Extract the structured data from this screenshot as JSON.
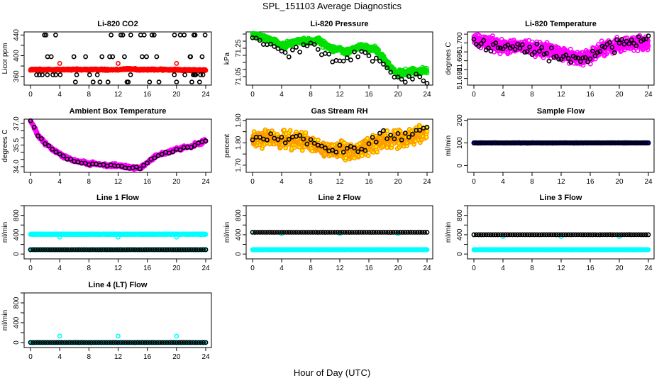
{
  "title": "SPL_151103  Average Diagnostics",
  "xlabel": "Hour of Day (UTC)",
  "chart_data": [
    {
      "type": "scatter",
      "title": "Li-820 CO2",
      "ylabel": "Licor ppm",
      "xlim": [
        0,
        24
      ],
      "ylim": [
        343,
        446
      ],
      "yticks": [
        360,
        380,
        400,
        420,
        440
      ],
      "ylabels": [
        "360",
        "",
        "400",
        "",
        "440"
      ],
      "series": [
        {
          "name": "dense",
          "color": "#ff0000",
          "trend": [
            373,
            373,
            373,
            373,
            373,
            373,
            373,
            373,
            373,
            373,
            373,
            373,
            373,
            374,
            374,
            373,
            373,
            373,
            373,
            373,
            373,
            372,
            372,
            372,
            372
          ],
          "spread": 1.5,
          "density": 30
        },
        {
          "name": "outliers",
          "color": "#ff0000",
          "points": [
            [
              4,
              385
            ],
            [
              12,
              385
            ],
            [
              20,
              385
            ]
          ]
        },
        {
          "name": "black",
          "color": "#000000",
          "levels": [
            440,
            398,
            363,
            349
          ],
          "count": 60
        }
      ]
    },
    {
      "type": "scatter",
      "title": "Li-820 Pressure",
      "ylabel": "kPa",
      "xlim": [
        0,
        24
      ],
      "ylim": [
        70.99,
        71.365
      ],
      "yticks": [
        71.05,
        71.1,
        71.15,
        71.2,
        71.25,
        71.3,
        71.35
      ],
      "ylabels": [
        "71.05",
        "",
        "",
        "",
        "71.25",
        "",
        ""
      ],
      "series": [
        {
          "name": "dense",
          "color": "#00e000",
          "trend": [
            71.35,
            71.33,
            71.32,
            71.3,
            71.27,
            71.28,
            71.3,
            71.3,
            71.3,
            71.31,
            71.27,
            71.25,
            71.24,
            71.22,
            71.25,
            71.26,
            71.25,
            71.24,
            71.18,
            71.11,
            71.07,
            71.08,
            71.09,
            71.09,
            71.09
          ],
          "spread": 0.02,
          "density": 30
        },
        {
          "name": "black",
          "color": "#000000",
          "trend": [
            71.33,
            71.3,
            71.28,
            71.24,
            71.21,
            71.22,
            71.25,
            71.26,
            71.27,
            71.26,
            71.2,
            71.18,
            71.17,
            71.16,
            71.2,
            71.22,
            71.2,
            71.17,
            71.12,
            71.07,
            71.03,
            71.02,
            71.04,
            71.05,
            71.01
          ],
          "spread": 0.03,
          "density": 2
        }
      ]
    },
    {
      "type": "scatter",
      "title": "Li-820 Temperature",
      "ylabel": "degrees C",
      "xlim": [
        0,
        24
      ],
      "ylim": [
        51.6905,
        51.7025
      ],
      "yticks": [
        51.692,
        51.694,
        51.696,
        51.698,
        51.7,
        51.702
      ],
      "ylabels": [
        "51.692",
        "",
        "51.696",
        "",
        "51.700",
        ""
      ],
      "series": [
        {
          "name": "dense",
          "color": "#ff00ff",
          "trend": [
            51.7008,
            51.7004,
            51.7,
            51.6996,
            51.6994,
            51.6993,
            51.6992,
            51.699,
            51.6988,
            51.6985,
            51.6983,
            51.698,
            51.6976,
            51.6972,
            51.6968,
            51.6964,
            51.697,
            51.6982,
            51.699,
            51.6994,
            51.6996,
            51.6998,
            51.6999,
            51.7,
            51.7001
          ],
          "spread": 0.0015,
          "density": 35
        },
        {
          "name": "black",
          "color": "#000000",
          "trend": [
            51.7,
            51.7001,
            51.6998,
            51.6994,
            51.6992,
            51.699,
            51.6988,
            51.6985,
            51.6982,
            51.698,
            51.6978,
            51.6975,
            51.6972,
            51.697,
            51.6966,
            51.6962,
            51.697,
            51.698,
            51.6988,
            51.6992,
            51.6994,
            51.6996,
            51.6998,
            51.7,
            51.7002
          ],
          "spread": 0.0015,
          "density": 3
        }
      ]
    },
    {
      "type": "scatter",
      "title": "Ambient Box Temperature",
      "ylabel": "degrees C",
      "xlim": [
        0,
        24
      ],
      "ylim": [
        33.6,
        37.3
      ],
      "yticks": [
        34.0,
        34.5,
        35.0,
        35.5,
        36.0,
        36.5,
        37.0
      ],
      "ylabels": [
        "34.0",
        "",
        "",
        "35.5",
        "",
        "",
        "37.0"
      ],
      "series": [
        {
          "name": "dense",
          "color": "#ff00ff",
          "trend": [
            37.2,
            36.2,
            35.6,
            35.2,
            34.9,
            34.6,
            34.4,
            34.3,
            34.2,
            34.2,
            34.1,
            34.1,
            34.05,
            34.0,
            33.9,
            33.9,
            34.3,
            34.7,
            34.9,
            35.0,
            35.2,
            35.3,
            35.4,
            35.6,
            35.8
          ],
          "spread": 0.12,
          "density": 25
        },
        {
          "name": "black",
          "color": "#000000",
          "trend": [
            37.2,
            36.2,
            35.6,
            35.2,
            34.9,
            34.6,
            34.4,
            34.3,
            34.2,
            34.2,
            34.1,
            34.1,
            34.05,
            34.0,
            33.9,
            33.9,
            34.3,
            34.7,
            34.9,
            35.0,
            35.2,
            35.3,
            35.4,
            35.6,
            35.8
          ],
          "spread": 0.08,
          "density": 2
        }
      ]
    },
    {
      "type": "scatter",
      "title": "Gas Stream RH",
      "ylabel": "percent",
      "xlim": [
        0,
        24
      ],
      "ylim": [
        1.668,
        1.906
      ],
      "yticks": [
        1.7,
        1.75,
        1.8,
        1.85,
        1.9
      ],
      "ylabels": [
        "1.70",
        "",
        "1.80",
        "",
        "1.90"
      ],
      "series": [
        {
          "name": "dense",
          "color": "#ff9900",
          "inner": "#ffff00",
          "trend": [
            1.81,
            1.82,
            1.82,
            1.82,
            1.81,
            1.82,
            1.81,
            1.81,
            1.79,
            1.78,
            1.77,
            1.77,
            1.77,
            1.76,
            1.76,
            1.77,
            1.79,
            1.8,
            1.81,
            1.81,
            1.82,
            1.82,
            1.83,
            1.84,
            1.85
          ],
          "spread": 0.035,
          "density": 35
        },
        {
          "name": "black",
          "color": "#000000",
          "trend": [
            1.82,
            1.83,
            1.83,
            1.82,
            1.82,
            1.83,
            1.82,
            1.82,
            1.79,
            1.78,
            1.77,
            1.77,
            1.78,
            1.76,
            1.76,
            1.77,
            1.8,
            1.82,
            1.84,
            1.83,
            1.82,
            1.83,
            1.84,
            1.86,
            1.86
          ],
          "spread": 0.025,
          "density": 2
        }
      ]
    },
    {
      "type": "scatter",
      "title": "Sample Flow",
      "ylabel": "ml/min",
      "xlim": [
        0,
        24
      ],
      "ylim": [
        -30,
        205
      ],
      "yticks": [
        0,
        100,
        200
      ],
      "ylabels": [
        "0",
        "100",
        "200"
      ],
      "series": [
        {
          "name": "dense",
          "color": "#0000ff",
          "trend": [
            100,
            100,
            100,
            100,
            100,
            100,
            100,
            100,
            100,
            100,
            100,
            100,
            100,
            100,
            100,
            100,
            100,
            100,
            100,
            100,
            100,
            100,
            100,
            100,
            100
          ],
          "spread": 1,
          "density": 30
        },
        {
          "name": "black",
          "color": "#000000",
          "trend": [
            100,
            100,
            100,
            100,
            100,
            100,
            100,
            100,
            100,
            100,
            100,
            100,
            100,
            100,
            100,
            100,
            100,
            100,
            100,
            100,
            100,
            100,
            100,
            100,
            100
          ],
          "spread": 0.5,
          "density": 3
        }
      ]
    },
    {
      "type": "scatter",
      "title": "Line 1 Flow",
      "ylabel": "ml/min",
      "xlim": [
        0,
        24
      ],
      "ylim": [
        -100,
        1000
      ],
      "yticks": [
        0,
        200,
        400,
        600,
        800,
        1000
      ],
      "ylabels": [
        "0",
        "",
        "400",
        "",
        "800",
        ""
      ],
      "series": [
        {
          "name": "cyan-high",
          "color": "#00ffff",
          "flat": 410,
          "spread": 5,
          "density": 35
        },
        {
          "name": "cyan-low",
          "color": "#00ffff",
          "flat": 90,
          "spread": 2,
          "density": 10
        },
        {
          "name": "cyan-outliers",
          "color": "#00ffff",
          "points": [
            [
              4,
              350
            ],
            [
              12,
              350
            ],
            [
              20,
              350
            ]
          ]
        },
        {
          "name": "black",
          "color": "#000000",
          "flat": 90,
          "spread": 1,
          "density": 3
        }
      ]
    },
    {
      "type": "scatter",
      "title": "Line 2 Flow",
      "ylabel": "ml/min",
      "xlim": [
        0,
        24
      ],
      "ylim": [
        -100,
        1000
      ],
      "yticks": [
        0,
        200,
        400,
        600,
        800,
        1000
      ],
      "ylabels": [
        "0",
        "",
        "400",
        "",
        "800",
        ""
      ],
      "series": [
        {
          "name": "cyan-low",
          "color": "#00ffff",
          "flat": 90,
          "spread": 4,
          "density": 30
        },
        {
          "name": "cyan-outliers",
          "color": "#00ffff",
          "points": [
            [
              0,
              450
            ],
            [
              4,
              420
            ],
            [
              12,
              420
            ],
            [
              20,
              420
            ]
          ]
        },
        {
          "name": "black",
          "color": "#000000",
          "flat": 450,
          "spread": 1,
          "density": 3
        }
      ]
    },
    {
      "type": "scatter",
      "title": "Line 3 Flow",
      "ylabel": "ml/min",
      "xlim": [
        0,
        24
      ],
      "ylim": [
        -100,
        1000
      ],
      "yticks": [
        0,
        200,
        400,
        600,
        800,
        1000
      ],
      "ylabels": [
        "0",
        "",
        "400",
        "",
        "800",
        ""
      ],
      "series": [
        {
          "name": "cyan-low",
          "color": "#00ffff",
          "flat": 90,
          "spread": 4,
          "density": 30
        },
        {
          "name": "cyan-outliers",
          "color": "#00ffff",
          "points": [
            [
              0,
              400
            ],
            [
              4,
              360
            ],
            [
              12,
              360
            ],
            [
              20,
              360
            ]
          ]
        },
        {
          "name": "black",
          "color": "#000000",
          "flat": 400,
          "spread": 1,
          "density": 3
        }
      ]
    },
    {
      "type": "scatter",
      "title": "Line 4 (LT) Flow",
      "ylabel": "ml/min",
      "xlim": [
        0,
        24
      ],
      "ylim": [
        -100,
        1000
      ],
      "yticks": [
        0,
        200,
        400,
        600,
        800,
        1000
      ],
      "ylabels": [
        "0",
        "",
        "400",
        "",
        "800",
        ""
      ],
      "series": [
        {
          "name": "cyan-low",
          "color": "#00ffff",
          "flat": 2,
          "spread": 2,
          "density": 20
        },
        {
          "name": "cyan-outliers",
          "color": "#00ffff",
          "points": [
            [
              4,
              130
            ],
            [
              12,
              130
            ],
            [
              20,
              130
            ]
          ]
        },
        {
          "name": "black",
          "color": "#000000",
          "flat": 2,
          "spread": 1,
          "density": 3
        }
      ]
    }
  ],
  "xticks": [
    0,
    4,
    8,
    12,
    16,
    20,
    24
  ]
}
